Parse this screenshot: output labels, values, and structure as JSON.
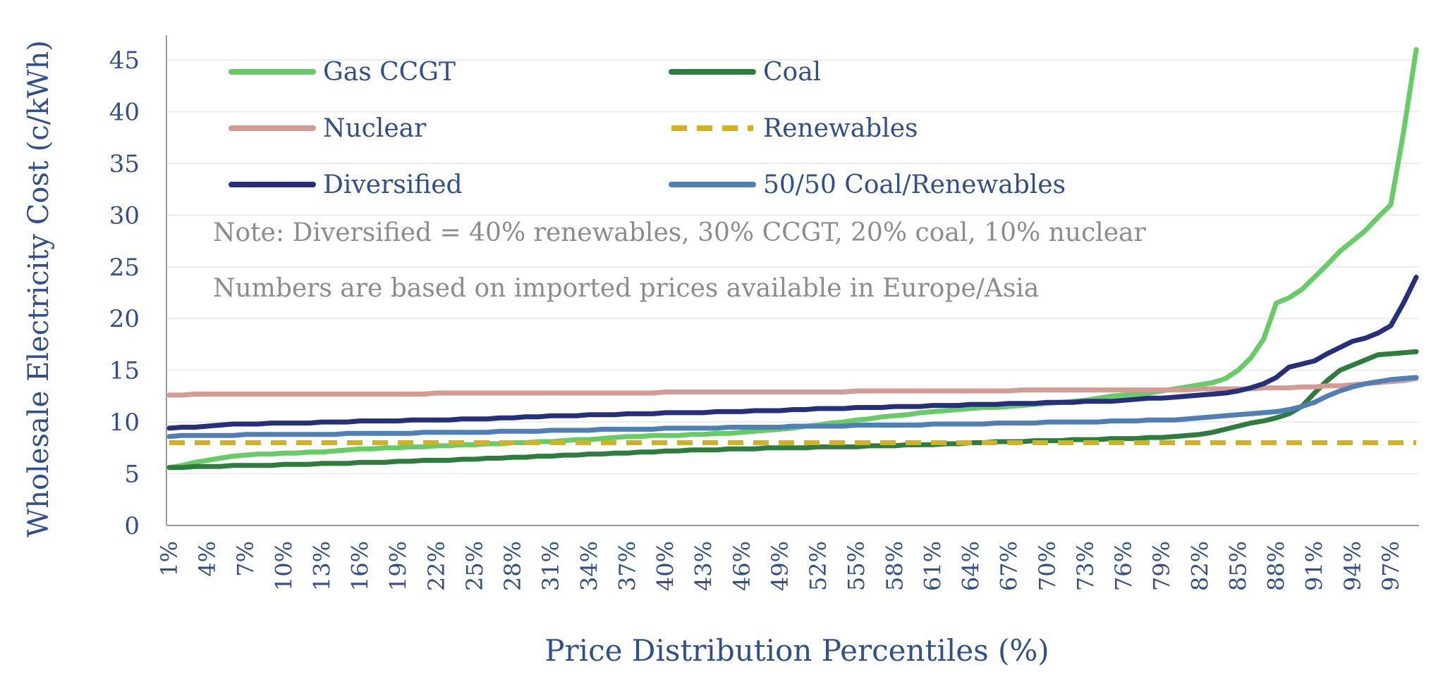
{
  "chart_data": {
    "type": "line",
    "ylabel": "Wholesale Electricity Cost (c/kWh)",
    "xlabel": "Price Distribution Percentiles (%)",
    "ylim": [
      0,
      45
    ],
    "yticks": [
      0,
      5,
      10,
      15,
      20,
      25,
      30,
      35,
      40,
      45
    ],
    "x": [
      1,
      2,
      3,
      4,
      5,
      6,
      7,
      8,
      9,
      10,
      11,
      12,
      13,
      14,
      15,
      16,
      17,
      18,
      19,
      20,
      21,
      22,
      23,
      24,
      25,
      26,
      27,
      28,
      29,
      30,
      31,
      32,
      33,
      34,
      35,
      36,
      37,
      38,
      39,
      40,
      41,
      42,
      43,
      44,
      45,
      46,
      47,
      48,
      49,
      50,
      51,
      52,
      53,
      54,
      55,
      56,
      57,
      58,
      59,
      60,
      61,
      62,
      63,
      64,
      65,
      66,
      67,
      68,
      69,
      70,
      71,
      72,
      73,
      74,
      75,
      76,
      77,
      78,
      79,
      80,
      81,
      82,
      83,
      84,
      85,
      86,
      87,
      88,
      89,
      90,
      91,
      92,
      93,
      94,
      95,
      96,
      97,
      98,
      99
    ],
    "xtick_labels": [
      "1%",
      "4%",
      "7%",
      "10%",
      "13%",
      "16%",
      "19%",
      "22%",
      "25%",
      "28%",
      "31%",
      "34%",
      "37%",
      "40%",
      "43%",
      "46%",
      "49%",
      "52%",
      "55%",
      "58%",
      "61%",
      "64%",
      "67%",
      "70%",
      "73%",
      "76%",
      "79%",
      "82%",
      "85%",
      "88%",
      "91%",
      "94%",
      "97%"
    ],
    "grid": "horizontal",
    "legend_position": "top-left",
    "notes": [
      "Note: Diversified = 40% renewables, 30% CCGT, 20% coal, 10% nuclear",
      "Numbers are based on imported prices available in Europe/Asia"
    ],
    "series": [
      {
        "name": "Gas CCGT",
        "color": "#66cc66",
        "dash": "solid",
        "values": [
          5.6,
          5.8,
          6.1,
          6.3,
          6.5,
          6.7,
          6.8,
          6.9,
          6.9,
          7.0,
          7.0,
          7.1,
          7.1,
          7.2,
          7.3,
          7.4,
          7.4,
          7.5,
          7.5,
          7.6,
          7.6,
          7.7,
          7.7,
          7.8,
          7.8,
          7.9,
          7.9,
          8.0,
          8.0,
          8.1,
          8.1,
          8.2,
          8.3,
          8.3,
          8.4,
          8.5,
          8.6,
          8.6,
          8.7,
          8.7,
          8.7,
          8.8,
          8.8,
          8.9,
          8.9,
          9.0,
          9.1,
          9.2,
          9.3,
          9.4,
          9.6,
          9.7,
          9.9,
          10.0,
          10.2,
          10.3,
          10.5,
          10.6,
          10.7,
          10.9,
          11.0,
          11.1,
          11.2,
          11.3,
          11.4,
          11.4,
          11.5,
          11.6,
          11.7,
          11.8,
          11.9,
          12.0,
          12.1,
          12.3,
          12.5,
          12.6,
          12.7,
          12.8,
          13.0,
          13.2,
          13.4,
          13.6,
          13.8,
          14.2,
          15.0,
          16.2,
          18.0,
          21.5,
          22.0,
          22.8,
          24.0,
          25.2,
          26.5,
          27.5,
          28.5,
          29.8,
          31.0,
          38.0,
          46.0
        ]
      },
      {
        "name": "Coal",
        "color": "#2e7d3e",
        "dash": "solid",
        "values": [
          5.6,
          5.6,
          5.7,
          5.7,
          5.7,
          5.8,
          5.8,
          5.8,
          5.8,
          5.9,
          5.9,
          5.9,
          6.0,
          6.0,
          6.0,
          6.1,
          6.1,
          6.1,
          6.2,
          6.2,
          6.3,
          6.3,
          6.3,
          6.4,
          6.4,
          6.5,
          6.5,
          6.6,
          6.6,
          6.7,
          6.7,
          6.8,
          6.8,
          6.9,
          6.9,
          7.0,
          7.0,
          7.1,
          7.1,
          7.2,
          7.2,
          7.3,
          7.3,
          7.3,
          7.4,
          7.4,
          7.4,
          7.5,
          7.5,
          7.5,
          7.5,
          7.6,
          7.6,
          7.6,
          7.6,
          7.7,
          7.7,
          7.7,
          7.8,
          7.8,
          7.8,
          7.9,
          7.9,
          8.0,
          8.0,
          8.1,
          8.1,
          8.1,
          8.2,
          8.2,
          8.2,
          8.3,
          8.3,
          8.3,
          8.4,
          8.4,
          8.4,
          8.5,
          8.5,
          8.6,
          8.7,
          8.8,
          9.0,
          9.3,
          9.6,
          9.9,
          10.1,
          10.4,
          10.8,
          11.5,
          12.8,
          14.0,
          15.0,
          15.5,
          16.0,
          16.5,
          16.6,
          16.7,
          16.8
        ]
      },
      {
        "name": "Nuclear",
        "color": "#d49a94",
        "dash": "solid",
        "values": [
          12.6,
          12.6,
          12.7,
          12.7,
          12.7,
          12.7,
          12.7,
          12.7,
          12.7,
          12.7,
          12.7,
          12.7,
          12.7,
          12.7,
          12.7,
          12.7,
          12.7,
          12.7,
          12.7,
          12.7,
          12.7,
          12.8,
          12.8,
          12.8,
          12.8,
          12.8,
          12.8,
          12.8,
          12.8,
          12.8,
          12.8,
          12.8,
          12.8,
          12.8,
          12.8,
          12.8,
          12.8,
          12.8,
          12.8,
          12.9,
          12.9,
          12.9,
          12.9,
          12.9,
          12.9,
          12.9,
          12.9,
          12.9,
          12.9,
          12.9,
          12.9,
          12.9,
          12.9,
          12.9,
          13.0,
          13.0,
          13.0,
          13.0,
          13.0,
          13.0,
          13.0,
          13.0,
          13.0,
          13.0,
          13.0,
          13.0,
          13.0,
          13.1,
          13.1,
          13.1,
          13.1,
          13.1,
          13.1,
          13.1,
          13.1,
          13.1,
          13.1,
          13.1,
          13.1,
          13.1,
          13.1,
          13.2,
          13.2,
          13.2,
          13.2,
          13.2,
          13.3,
          13.3,
          13.3,
          13.4,
          13.4,
          13.5,
          13.5,
          13.6,
          13.7,
          13.8,
          13.9,
          14.0,
          14.2
        ]
      },
      {
        "name": "Renewables",
        "color": "#d4b21c",
        "dash": "dashed",
        "values": [
          8.0,
          8.0,
          8.0,
          8.0,
          8.0,
          8.0,
          8.0,
          8.0,
          8.0,
          8.0,
          8.0,
          8.0,
          8.0,
          8.0,
          8.0,
          8.0,
          8.0,
          8.0,
          8.0,
          8.0,
          8.0,
          8.0,
          8.0,
          8.0,
          8.0,
          8.0,
          8.0,
          8.0,
          8.0,
          8.0,
          8.0,
          8.0,
          8.0,
          8.0,
          8.0,
          8.0,
          8.0,
          8.0,
          8.0,
          8.0,
          8.0,
          8.0,
          8.0,
          8.0,
          8.0,
          8.0,
          8.0,
          8.0,
          8.0,
          8.0,
          8.0,
          8.0,
          8.0,
          8.0,
          8.0,
          8.0,
          8.0,
          8.0,
          8.0,
          8.0,
          8.0,
          8.0,
          8.0,
          8.0,
          8.0,
          8.0,
          8.0,
          8.0,
          8.0,
          8.0,
          8.0,
          8.0,
          8.0,
          8.0,
          8.0,
          8.0,
          8.0,
          8.0,
          8.0,
          8.0,
          8.0,
          8.0,
          8.0,
          8.0,
          8.0,
          8.0,
          8.0,
          8.0,
          8.0,
          8.0,
          8.0,
          8.0,
          8.0,
          8.0,
          8.0,
          8.0,
          8.0,
          8.0,
          8.0
        ]
      },
      {
        "name": "Diversified",
        "color": "#26307a",
        "dash": "solid",
        "values": [
          9.4,
          9.5,
          9.5,
          9.6,
          9.7,
          9.8,
          9.8,
          9.8,
          9.9,
          9.9,
          9.9,
          9.9,
          10.0,
          10.0,
          10.0,
          10.1,
          10.1,
          10.1,
          10.1,
          10.2,
          10.2,
          10.2,
          10.2,
          10.3,
          10.3,
          10.3,
          10.4,
          10.4,
          10.5,
          10.5,
          10.6,
          10.6,
          10.6,
          10.7,
          10.7,
          10.7,
          10.8,
          10.8,
          10.8,
          10.9,
          10.9,
          10.9,
          10.9,
          11.0,
          11.0,
          11.0,
          11.1,
          11.1,
          11.1,
          11.2,
          11.2,
          11.3,
          11.3,
          11.3,
          11.4,
          11.4,
          11.4,
          11.5,
          11.5,
          11.5,
          11.6,
          11.6,
          11.6,
          11.7,
          11.7,
          11.7,
          11.8,
          11.8,
          11.8,
          11.9,
          11.9,
          11.9,
          12.0,
          12.0,
          12.0,
          12.1,
          12.2,
          12.3,
          12.3,
          12.4,
          12.5,
          12.6,
          12.7,
          12.8,
          13.0,
          13.3,
          13.7,
          14.3,
          15.3,
          15.6,
          15.9,
          16.6,
          17.2,
          17.8,
          18.1,
          18.6,
          19.3,
          21.5,
          24.0
        ]
      },
      {
        "name": "50/50 Coal/Renewables",
        "color": "#4f7fb5",
        "dash": "solid",
        "values": [
          8.6,
          8.7,
          8.7,
          8.7,
          8.7,
          8.7,
          8.8,
          8.8,
          8.8,
          8.8,
          8.8,
          8.8,
          8.8,
          8.8,
          8.9,
          8.9,
          8.9,
          8.9,
          8.9,
          8.9,
          9.0,
          9.0,
          9.0,
          9.0,
          9.0,
          9.0,
          9.1,
          9.1,
          9.1,
          9.1,
          9.2,
          9.2,
          9.2,
          9.2,
          9.3,
          9.3,
          9.3,
          9.3,
          9.3,
          9.4,
          9.4,
          9.4,
          9.4,
          9.4,
          9.5,
          9.5,
          9.5,
          9.5,
          9.5,
          9.6,
          9.6,
          9.6,
          9.6,
          9.6,
          9.7,
          9.7,
          9.7,
          9.7,
          9.7,
          9.7,
          9.8,
          9.8,
          9.8,
          9.8,
          9.8,
          9.9,
          9.9,
          9.9,
          9.9,
          10.0,
          10.0,
          10.0,
          10.0,
          10.0,
          10.1,
          10.1,
          10.1,
          10.2,
          10.2,
          10.2,
          10.3,
          10.4,
          10.5,
          10.6,
          10.7,
          10.8,
          10.9,
          11.0,
          11.2,
          11.5,
          11.9,
          12.5,
          13.0,
          13.4,
          13.7,
          13.9,
          14.1,
          14.2,
          14.3
        ]
      }
    ]
  }
}
